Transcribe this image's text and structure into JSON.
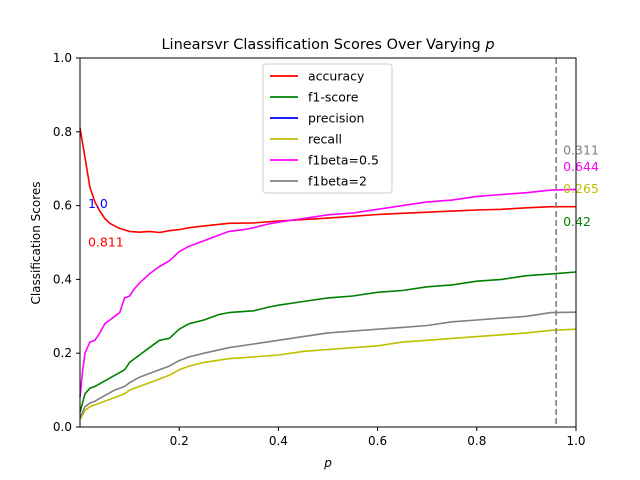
{
  "chart_data": {
    "type": "line",
    "title_prefix": "Linearsvr Classification Scores Over Varying ",
    "title_var": "p",
    "xlabel": "p",
    "ylabel": "Classification Scores",
    "xlim": [
      0.0,
      1.0
    ],
    "ylim": [
      0.0,
      1.0
    ],
    "xticks": [
      "0.2",
      "0.4",
      "0.6",
      "0.8",
      "1.0"
    ],
    "xtick_values": [
      0.2,
      0.4,
      0.6,
      0.8,
      1.0
    ],
    "yticks": [
      "0.0",
      "0.2",
      "0.4",
      "0.6",
      "0.8",
      "1.0"
    ],
    "ytick_values": [
      0.0,
      0.2,
      0.4,
      0.6,
      0.8,
      1.0
    ],
    "grid": false,
    "legend_position": "top-center",
    "vline": {
      "x": 0.96,
      "color": "#808080",
      "style": "dashed"
    },
    "series": [
      {
        "name": "accuracy",
        "color": "#ff0000",
        "x": [
          0.0,
          0.01,
          0.02,
          0.03,
          0.04,
          0.05,
          0.06,
          0.07,
          0.08,
          0.1,
          0.12,
          0.14,
          0.16,
          0.18,
          0.2,
          0.22,
          0.25,
          0.3,
          0.35,
          0.4,
          0.45,
          0.5,
          0.55,
          0.6,
          0.65,
          0.7,
          0.75,
          0.8,
          0.85,
          0.9,
          0.95,
          1.0
        ],
        "y": [
          0.811,
          0.73,
          0.65,
          0.61,
          0.585,
          0.565,
          0.552,
          0.545,
          0.538,
          0.53,
          0.528,
          0.53,
          0.527,
          0.532,
          0.535,
          0.54,
          0.545,
          0.552,
          0.553,
          0.558,
          0.562,
          0.566,
          0.571,
          0.576,
          0.579,
          0.582,
          0.585,
          0.588,
          0.59,
          0.594,
          0.597,
          0.597
        ]
      },
      {
        "name": "f1-score",
        "color": "#008000",
        "x": [
          0.0,
          0.01,
          0.02,
          0.03,
          0.05,
          0.07,
          0.09,
          0.1,
          0.12,
          0.14,
          0.16,
          0.18,
          0.2,
          0.22,
          0.25,
          0.28,
          0.3,
          0.35,
          0.38,
          0.4,
          0.45,
          0.5,
          0.55,
          0.6,
          0.65,
          0.7,
          0.75,
          0.8,
          0.85,
          0.9,
          0.95,
          1.0
        ],
        "y": [
          0.04,
          0.09,
          0.105,
          0.11,
          0.125,
          0.14,
          0.155,
          0.175,
          0.195,
          0.215,
          0.235,
          0.24,
          0.265,
          0.28,
          0.29,
          0.305,
          0.31,
          0.315,
          0.325,
          0.33,
          0.34,
          0.35,
          0.355,
          0.365,
          0.37,
          0.38,
          0.385,
          0.395,
          0.4,
          0.41,
          0.415,
          0.42
        ]
      },
      {
        "name": "precision",
        "color": "#0000ff",
        "x": [],
        "y": []
      },
      {
        "name": "recall",
        "color": "#bfbf00",
        "x": [
          0.0,
          0.01,
          0.02,
          0.03,
          0.05,
          0.07,
          0.09,
          0.1,
          0.12,
          0.14,
          0.16,
          0.18,
          0.2,
          0.22,
          0.25,
          0.3,
          0.35,
          0.4,
          0.45,
          0.5,
          0.55,
          0.6,
          0.65,
          0.7,
          0.75,
          0.8,
          0.85,
          0.9,
          0.95,
          1.0
        ],
        "y": [
          0.02,
          0.045,
          0.055,
          0.06,
          0.07,
          0.08,
          0.09,
          0.1,
          0.11,
          0.12,
          0.13,
          0.14,
          0.155,
          0.165,
          0.175,
          0.185,
          0.19,
          0.195,
          0.205,
          0.21,
          0.215,
          0.22,
          0.23,
          0.235,
          0.24,
          0.245,
          0.25,
          0.255,
          0.262,
          0.265
        ]
      },
      {
        "name": "f1beta=0.5",
        "color": "#ff00ff",
        "x": [
          0.0,
          0.005,
          0.01,
          0.02,
          0.03,
          0.04,
          0.05,
          0.06,
          0.07,
          0.08,
          0.09,
          0.1,
          0.11,
          0.12,
          0.14,
          0.16,
          0.18,
          0.2,
          0.22,
          0.25,
          0.28,
          0.3,
          0.33,
          0.35,
          0.38,
          0.4,
          0.45,
          0.5,
          0.55,
          0.6,
          0.65,
          0.7,
          0.75,
          0.8,
          0.85,
          0.9,
          0.95,
          1.0
        ],
        "y": [
          0.08,
          0.15,
          0.2,
          0.23,
          0.235,
          0.255,
          0.28,
          0.29,
          0.3,
          0.31,
          0.35,
          0.355,
          0.375,
          0.39,
          0.415,
          0.435,
          0.45,
          0.475,
          0.49,
          0.505,
          0.52,
          0.53,
          0.535,
          0.54,
          0.55,
          0.555,
          0.565,
          0.575,
          0.58,
          0.59,
          0.6,
          0.61,
          0.615,
          0.625,
          0.63,
          0.635,
          0.642,
          0.644
        ]
      },
      {
        "name": "f1beta=2",
        "color": "#808080",
        "x": [
          0.0,
          0.01,
          0.02,
          0.03,
          0.05,
          0.07,
          0.09,
          0.1,
          0.12,
          0.14,
          0.16,
          0.18,
          0.2,
          0.22,
          0.25,
          0.3,
          0.35,
          0.4,
          0.45,
          0.5,
          0.55,
          0.6,
          0.65,
          0.7,
          0.75,
          0.8,
          0.85,
          0.9,
          0.95,
          1.0
        ],
        "y": [
          0.025,
          0.055,
          0.065,
          0.07,
          0.085,
          0.1,
          0.11,
          0.12,
          0.135,
          0.145,
          0.155,
          0.165,
          0.18,
          0.19,
          0.2,
          0.215,
          0.225,
          0.235,
          0.245,
          0.255,
          0.26,
          0.265,
          0.27,
          0.275,
          0.285,
          0.29,
          0.295,
          0.3,
          0.31,
          0.311
        ]
      }
    ],
    "annotations": [
      {
        "text": "1.0",
        "x": 0.012,
        "y": 0.605,
        "color": "#0000ff"
      },
      {
        "text": "0.811",
        "x": 0.012,
        "y": 0.5,
        "color": "#ff0000"
      },
      {
        "text": "0.311",
        "x": 0.97,
        "y": 0.75,
        "color": "#808080"
      },
      {
        "text": "0.644",
        "x": 0.97,
        "y": 0.705,
        "color": "#ff00ff"
      },
      {
        "text": "0.265",
        "x": 0.97,
        "y": 0.645,
        "color": "#bfbf00"
      },
      {
        "text": "0.42",
        "x": 0.97,
        "y": 0.555,
        "color": "#008000"
      }
    ]
  }
}
